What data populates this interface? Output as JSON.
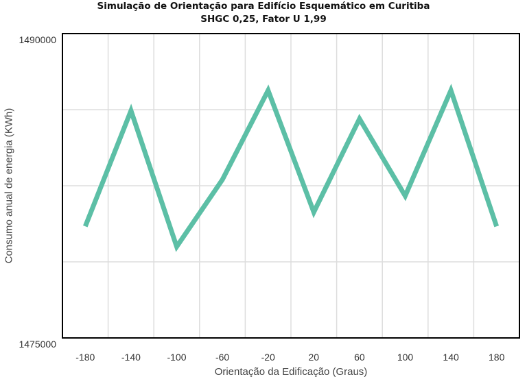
{
  "chart_data": {
    "type": "line",
    "title": "Simulação de Orientação para Edifício Esquemático em Curitiba",
    "subtitle": "SHGC 0,25, Fator U 1,99",
    "xlabel": "Orientação da Edificação (Graus)",
    "ylabel": "Consumo anual de energia (KWh)",
    "x": [
      -180,
      -140,
      -100,
      -60,
      -20,
      20,
      60,
      100,
      140,
      180
    ],
    "xlim": [
      -200,
      200
    ],
    "ylim": [
      1475000,
      1490000
    ],
    "ytick_labels": [
      "1490000",
      "1475000"
    ],
    "series": [
      {
        "values": [
          1480500,
          1486200,
          1479500,
          1482800,
          1487200,
          1481200,
          1485800,
          1482000,
          1487200,
          1480500
        ],
        "color": "#5cbfa6"
      }
    ],
    "grid": true,
    "legend": "none"
  }
}
